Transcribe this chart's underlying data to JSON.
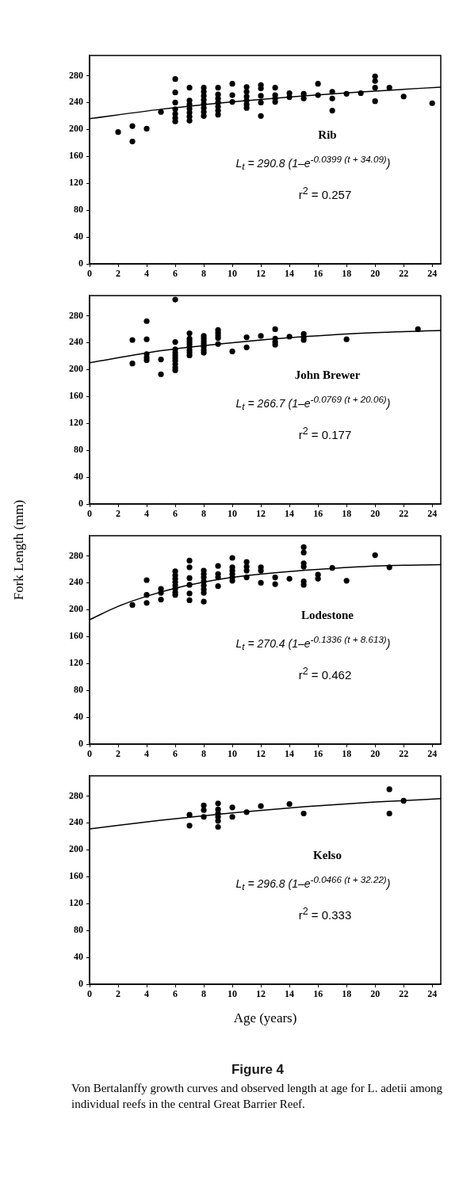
{
  "chart_data": [
    {
      "type": "scatter",
      "xlim": [
        0,
        24.6
      ],
      "ylim": [
        0,
        310
      ],
      "xticks": [
        0,
        2,
        4,
        6,
        8,
        10,
        12,
        14,
        16,
        18,
        20,
        22,
        24
      ],
      "yticks": [
        0,
        40,
        80,
        120,
        160,
        200,
        240,
        280
      ],
      "grid": false,
      "legend": false,
      "marker": "circle",
      "annotations": [
        "Rib",
        "L$_{t}$ = 290.8 (1–e$^{-0.0399 (t + 34.09)}$)",
        "r$^{2}$ = 0.257"
      ],
      "series": [
        {
          "type": "scatter",
          "color": "#000000",
          "x": [
            2,
            3,
            3,
            4,
            5,
            6,
            6,
            6,
            6,
            6,
            6,
            6,
            7,
            7,
            7,
            7,
            7,
            7,
            7,
            8,
            8,
            8,
            8,
            8,
            8,
            8,
            8,
            9,
            9,
            9,
            9,
            9,
            9,
            9,
            10,
            10,
            10,
            11,
            11,
            11,
            11,
            11,
            11,
            12,
            12,
            12,
            12,
            12,
            13,
            13,
            13,
            13,
            14,
            14,
            15,
            15,
            16,
            16,
            17,
            17,
            17,
            18,
            19,
            20,
            20,
            20,
            20,
            21,
            22,
            24
          ],
          "values": [
            196,
            205,
            182,
            201,
            226,
            275,
            255,
            240,
            230,
            223,
            217,
            212,
            262,
            243,
            237,
            231,
            225,
            219,
            213,
            262,
            256,
            250,
            244,
            238,
            232,
            226,
            220,
            262,
            252,
            246,
            240,
            234,
            228,
            222,
            268,
            251,
            241,
            263,
            256,
            249,
            243,
            237,
            232,
            266,
            261,
            250,
            240,
            220,
            262,
            251,
            246,
            241,
            254,
            248,
            253,
            246,
            268,
            251,
            256,
            246,
            228,
            253,
            254,
            279,
            272,
            262,
            242,
            262,
            249,
            239
          ]
        },
        {
          "type": "line",
          "color": "#000000",
          "marker": "none",
          "x": [
            0,
            5,
            10,
            15,
            20,
            24.6
          ],
          "values": [
            216,
            230,
            241,
            250,
            257,
            263
          ]
        }
      ]
    },
    {
      "type": "scatter",
      "xlim": [
        0,
        24.6
      ],
      "ylim": [
        0,
        310
      ],
      "xticks": [
        0,
        2,
        4,
        6,
        8,
        10,
        12,
        14,
        16,
        18,
        20,
        22,
        24
      ],
      "yticks": [
        0,
        40,
        80,
        120,
        160,
        200,
        240,
        280
      ],
      "grid": false,
      "legend": false,
      "marker": "circle",
      "annotations": [
        "John Brewer",
        "L$_{t}$ = 266.7 (1–e$^{-0.0769 (t + 20.06)}$)",
        "r$^{2}$ = 0.177"
      ],
      "series": [
        {
          "type": "scatter",
          "color": "#000000",
          "x": [
            3,
            3,
            4,
            4,
            4,
            4,
            4,
            5,
            5,
            6,
            6,
            6,
            6,
            6,
            6,
            6,
            6,
            6,
            6,
            7,
            7,
            7,
            7,
            7,
            7,
            7,
            7,
            8,
            8,
            8,
            8,
            8,
            8,
            8,
            9,
            9,
            9,
            9,
            9,
            10,
            11,
            11,
            12,
            13,
            13,
            13,
            13,
            14,
            15,
            15,
            15,
            18,
            23
          ],
          "values": [
            244,
            209,
            272,
            245,
            223,
            218,
            214,
            215,
            193,
            304,
            241,
            230,
            225,
            221,
            217,
            213,
            208,
            203,
            199,
            254,
            246,
            242,
            238,
            234,
            229,
            225,
            221,
            250,
            246,
            242,
            238,
            234,
            229,
            225,
            259,
            255,
            251,
            247,
            238,
            227,
            248,
            233,
            250,
            260,
            246,
            241,
            237,
            249,
            253,
            248,
            244,
            245,
            260
          ]
        },
        {
          "type": "line",
          "color": "#000000",
          "marker": "none",
          "x": [
            0,
            5,
            10,
            15,
            20,
            24.6
          ],
          "values": [
            210,
            228,
            240,
            249,
            255,
            258
          ]
        }
      ]
    },
    {
      "type": "scatter",
      "xlim": [
        0,
        24.6
      ],
      "ylim": [
        0,
        310
      ],
      "xticks": [
        0,
        2,
        4,
        6,
        8,
        10,
        12,
        14,
        16,
        18,
        20,
        22,
        24
      ],
      "yticks": [
        0,
        40,
        80,
        120,
        160,
        200,
        240,
        280
      ],
      "grid": false,
      "legend": false,
      "marker": "circle",
      "ylabel": "Fork Length (mm)",
      "annotations": [
        "Lodestone",
        "L$_{t}$ = 270.4 (1–e$^{-0.1336 (t + 8.613)}$)",
        "r$^{2}$ = 0.462"
      ],
      "series": [
        {
          "type": "scatter",
          "color": "#000000",
          "x": [
            3,
            4,
            4,
            4,
            5,
            5,
            5,
            6,
            6,
            6,
            6,
            6,
            6,
            6,
            6,
            7,
            7,
            7,
            7,
            7,
            7,
            8,
            8,
            8,
            8,
            8,
            8,
            8,
            8,
            9,
            9,
            9,
            9,
            10,
            10,
            10,
            10,
            10,
            10,
            11,
            11,
            11,
            11,
            12,
            12,
            12,
            13,
            13,
            14,
            15,
            15,
            15,
            15,
            15,
            15,
            16,
            16,
            17,
            18,
            20,
            21
          ],
          "values": [
            207,
            244,
            222,
            210,
            231,
            225,
            215,
            257,
            251,
            246,
            241,
            236,
            231,
            226,
            222,
            273,
            263,
            247,
            237,
            224,
            214,
            258,
            253,
            248,
            242,
            236,
            230,
            225,
            212,
            265,
            253,
            248,
            235,
            277,
            263,
            258,
            253,
            248,
            243,
            271,
            264,
            258,
            248,
            263,
            258,
            240,
            248,
            238,
            246,
            293,
            285,
            269,
            264,
            242,
            237,
            252,
            246,
            262,
            243,
            281,
            263
          ]
        },
        {
          "type": "line",
          "color": "#000000",
          "marker": "none",
          "x": [
            0,
            2,
            4,
            6,
            8,
            10,
            13,
            16,
            20,
            24.6
          ],
          "values": [
            185,
            205,
            220,
            232,
            241,
            248,
            255,
            260,
            265,
            267
          ]
        }
      ]
    },
    {
      "type": "scatter",
      "xlim": [
        0,
        24.6
      ],
      "ylim": [
        0,
        310
      ],
      "xticks": [
        0,
        2,
        4,
        6,
        8,
        10,
        12,
        14,
        16,
        18,
        20,
        22,
        24
      ],
      "yticks": [
        0,
        40,
        80,
        120,
        160,
        200,
        240,
        280
      ],
      "grid": false,
      "legend": false,
      "marker": "circle",
      "xlabel": "Age (years)",
      "annotations": [
        "Kelso",
        "L$_{t}$ = 296.8 (1–e$^{-0.0466 (t + 32.22)}$)",
        "r$^{2}$ = 0.333"
      ],
      "series": [
        {
          "type": "scatter",
          "color": "#000000",
          "x": [
            7,
            7,
            8,
            8,
            8,
            9,
            9,
            9,
            9,
            9,
            9,
            10,
            10,
            11,
            12,
            14,
            15,
            21,
            21,
            22
          ],
          "values": [
            252,
            236,
            266,
            259,
            249,
            269,
            260,
            254,
            249,
            243,
            234,
            263,
            249,
            256,
            265,
            268,
            254,
            290,
            254,
            273
          ]
        },
        {
          "type": "line",
          "color": "#000000",
          "marker": "none",
          "x": [
            0,
            5,
            10,
            15,
            20,
            24.6
          ],
          "values": [
            231,
            244,
            255,
            264,
            271,
            276
          ]
        }
      ]
    },
    {
      "type": "other",
      "title": "Figure 4",
      "annotations": [
        "Von Bertalanffy growth curves and observed length at age for L. adetii among individual reefs in the central Great Barrier Reef."
      ]
    }
  ]
}
